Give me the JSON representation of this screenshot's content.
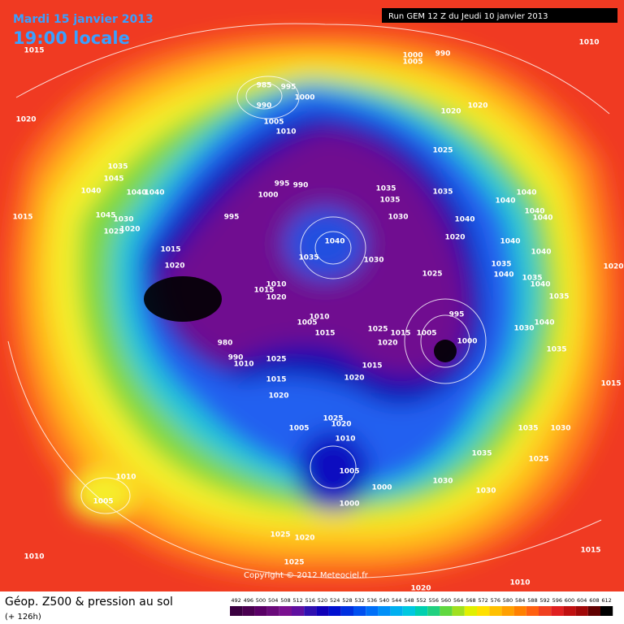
{
  "header": {
    "date": "Mardi 15 janvier 2013",
    "time": "19:00 locale",
    "run": "Run GEM 12 Z du Jeudi 10 janvier 2013"
  },
  "map": {
    "copyright": "Copyright © 2012 Meteociel.fr",
    "pressure_labels": [
      1015,
      1020,
      1035,
      1045,
      1040,
      1040,
      1040,
      1015,
      1045,
      1030,
      1025,
      1020,
      1015,
      1020,
      985,
      995,
      990,
      1000,
      1005,
      1010,
      995,
      990,
      1000,
      995,
      1035,
      1035,
      1030,
      1040,
      1035,
      1030,
      1035,
      1040,
      1020,
      1025,
      1010,
      1015,
      1020,
      1010,
      1005,
      1015,
      1025,
      1015,
      1005,
      1020,
      995,
      1000,
      980,
      990,
      1010,
      1025,
      1015,
      1020,
      1015,
      1020,
      1005,
      1025,
      1020,
      1010,
      1005,
      1000,
      1000,
      1000,
      1005,
      990,
      1010,
      1020,
      1020,
      1025,
      1040,
      1040,
      1040,
      1040,
      1040,
      1040,
      1020,
      1035,
      1040,
      1035,
      1040,
      1035,
      1030,
      1040,
      1035,
      1015,
      1035,
      1030,
      1035,
      1025,
      1030,
      1030,
      1010,
      1005,
      1025,
      1020,
      1025,
      1020,
      1010,
      1015,
      1010
    ]
  },
  "legend": {
    "title": "Géop. Z500 & pression au sol",
    "lead": "(+ 126h)",
    "values": [
      492,
      496,
      500,
      504,
      508,
      512,
      516,
      520,
      524,
      528,
      532,
      536,
      540,
      544,
      548,
      552,
      556,
      560,
      564,
      568,
      572,
      576,
      580,
      584,
      588,
      592,
      596,
      600,
      604,
      608,
      612
    ]
  }
}
